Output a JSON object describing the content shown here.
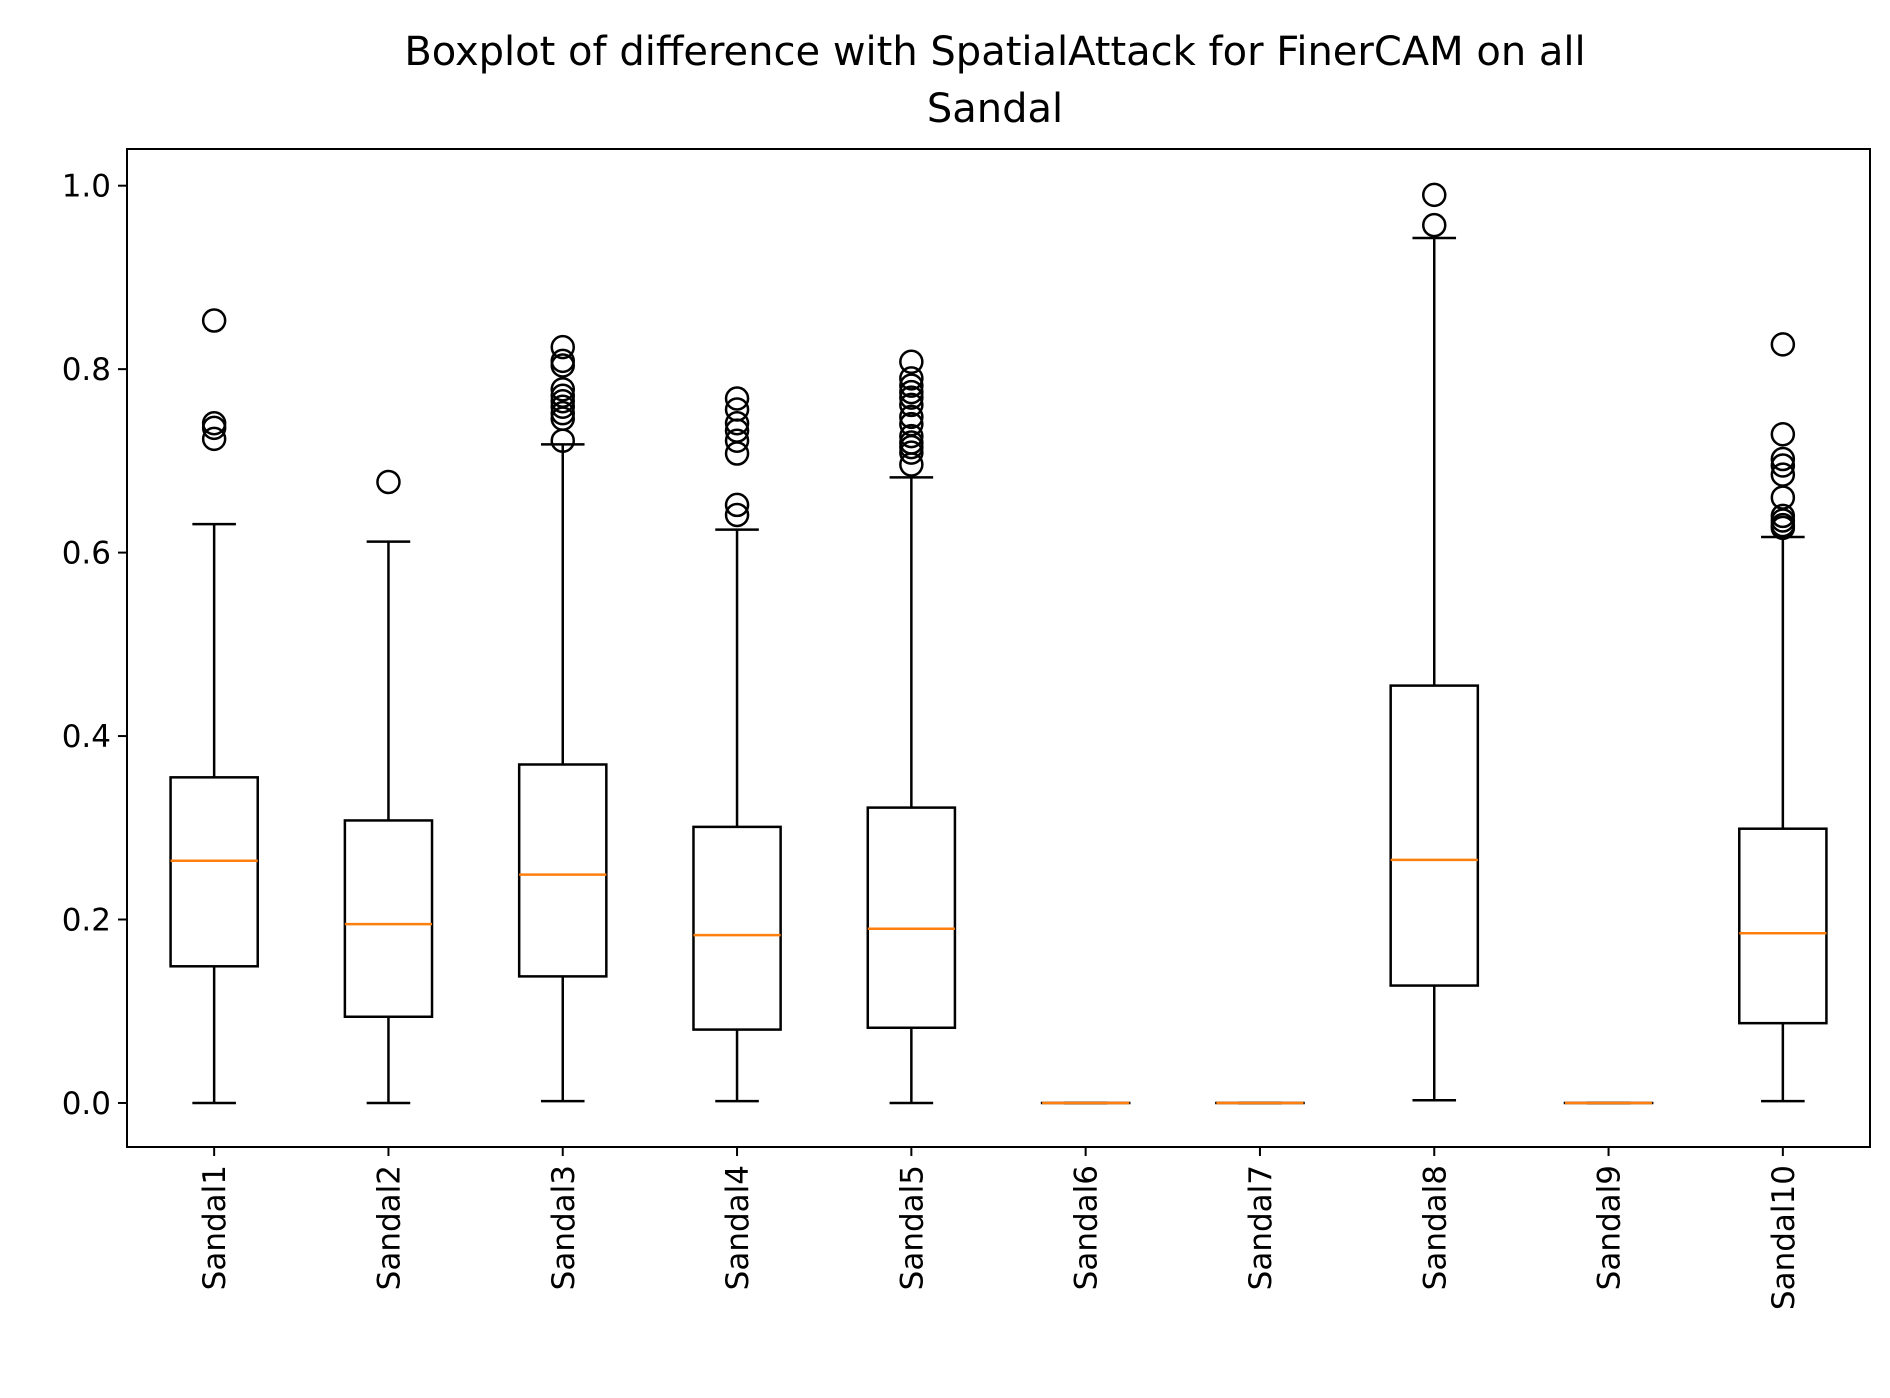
{
  "chart_data": {
    "type": "boxplot",
    "title_lines": [
      "Boxplot of difference with SpatialAttack for FinerCAM on all",
      "Sandal"
    ],
    "xlabel": "",
    "ylabel": "",
    "ylim": [
      -0.048,
      1.04
    ],
    "yticks": [
      "0.0",
      "0.2",
      "0.4",
      "0.6",
      "0.8",
      "1.0"
    ],
    "ytick_values": [
      0.0,
      0.2,
      0.4,
      0.6,
      0.8,
      1.0
    ],
    "grid": false,
    "colors": {
      "box": "#000000",
      "median": "#ff7f0e",
      "flier": "#000000"
    },
    "categories": [
      "Sandal1",
      "Sandal2",
      "Sandal3",
      "Sandal4",
      "Sandal5",
      "Sandal6",
      "Sandal7",
      "Sandal8",
      "Sandal9",
      "Sandal10"
    ],
    "boxes": [
      {
        "name": "Sandal1",
        "whisker_low": 0.0,
        "q1": 0.149,
        "median": 0.264,
        "q3": 0.355,
        "whisker_high": 0.631,
        "fliers": [
          0.853,
          0.741,
          0.736,
          0.724
        ]
      },
      {
        "name": "Sandal2",
        "whisker_low": 0.0,
        "q1": 0.094,
        "median": 0.195,
        "q3": 0.308,
        "whisker_high": 0.612,
        "fliers": [
          0.677
        ]
      },
      {
        "name": "Sandal3",
        "whisker_low": 0.002,
        "q1": 0.138,
        "median": 0.249,
        "q3": 0.369,
        "whisker_high": 0.718,
        "fliers": [
          0.824,
          0.809,
          0.804,
          0.778,
          0.771,
          0.765,
          0.759,
          0.752,
          0.746,
          0.722
        ]
      },
      {
        "name": "Sandal4",
        "whisker_low": 0.002,
        "q1": 0.08,
        "median": 0.183,
        "q3": 0.301,
        "whisker_high": 0.625,
        "fliers": [
          0.768,
          0.756,
          0.741,
          0.733,
          0.722,
          0.708,
          0.652,
          0.641
        ]
      },
      {
        "name": "Sandal5",
        "whisker_low": 0.0,
        "q1": 0.082,
        "median": 0.19,
        "q3": 0.322,
        "whisker_high": 0.682,
        "fliers": [
          0.808,
          0.79,
          0.782,
          0.775,
          0.769,
          0.761,
          0.748,
          0.74,
          0.727,
          0.72,
          0.715,
          0.709,
          0.696
        ]
      },
      {
        "name": "Sandal6",
        "whisker_low": 0.0,
        "q1": 0.0,
        "median": 0.0,
        "q3": 0.0,
        "whisker_high": 0.0,
        "fliers": []
      },
      {
        "name": "Sandal7",
        "whisker_low": 0.0,
        "q1": 0.0,
        "median": 0.0,
        "q3": 0.0,
        "whisker_high": 0.0,
        "fliers": []
      },
      {
        "name": "Sandal8",
        "whisker_low": 0.003,
        "q1": 0.128,
        "median": 0.265,
        "q3": 0.455,
        "whisker_high": 0.943,
        "fliers": [
          0.99,
          0.957
        ]
      },
      {
        "name": "Sandal9",
        "whisker_low": 0.0,
        "q1": 0.0,
        "median": 0.0,
        "q3": 0.0,
        "whisker_high": 0.0,
        "fliers": []
      },
      {
        "name": "Sandal10",
        "whisker_low": 0.002,
        "q1": 0.087,
        "median": 0.185,
        "q3": 0.299,
        "whisker_high": 0.617,
        "fliers": [
          0.827,
          0.729,
          0.702,
          0.695,
          0.685,
          0.66,
          0.64,
          0.635,
          0.63,
          0.627
        ]
      }
    ]
  }
}
